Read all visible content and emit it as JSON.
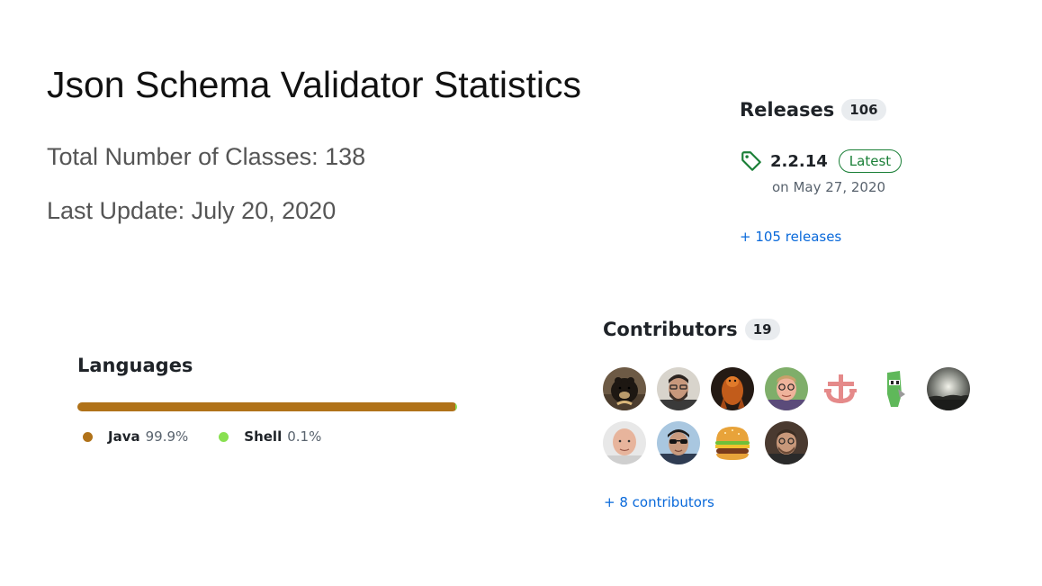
{
  "title": "Json Schema Validator Statistics",
  "stats": {
    "classes": "Total Number of Classes: 138",
    "last_update": "Last Update: July 20, 2020"
  },
  "releases": {
    "heading": "Releases",
    "count": "106",
    "latest_version": "2.2.14",
    "latest_badge": "Latest",
    "latest_date": "on May 27, 2020",
    "more_link": "+ 105 releases",
    "tag_color": "#1a7f37"
  },
  "languages": {
    "heading": "Languages",
    "items": [
      {
        "name": "Java",
        "percent": "99.9%",
        "value": 99.9,
        "color": "#b07219"
      },
      {
        "name": "Shell",
        "percent": "0.1%",
        "value": 0.1,
        "color": "#89e051"
      }
    ]
  },
  "contributors": {
    "heading": "Contributors",
    "count": "19",
    "more_link": "+ 8 contributors",
    "avatars": [
      {
        "name": "avatar-1",
        "icon": "sun-bear-photo"
      },
      {
        "name": "avatar-2",
        "icon": "bearded-man-photo"
      },
      {
        "name": "avatar-3",
        "icon": "carved-figure-photo"
      },
      {
        "name": "avatar-4",
        "icon": "man-glasses-photo"
      },
      {
        "name": "avatar-5",
        "icon": "pink-anchor-logo"
      },
      {
        "name": "avatar-6",
        "icon": "green-knight-icon"
      },
      {
        "name": "avatar-7",
        "icon": "cloudy-sky-photo"
      },
      {
        "name": "avatar-8",
        "icon": "bald-man-photo"
      },
      {
        "name": "avatar-9",
        "icon": "man-sunglasses-photo"
      },
      {
        "name": "avatar-10",
        "icon": "burger-emoji"
      },
      {
        "name": "avatar-11",
        "icon": "man-portrait-photo"
      }
    ]
  },
  "colors": {
    "link": "#0969da",
    "muted": "#59636e",
    "counter_bg": "#e9ecef"
  }
}
